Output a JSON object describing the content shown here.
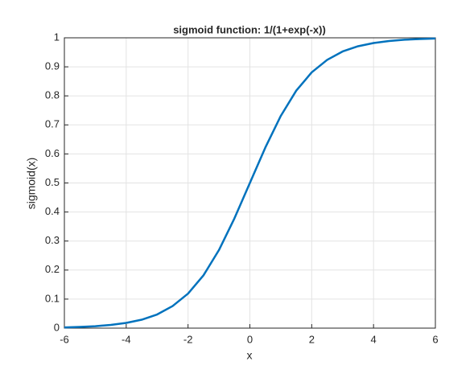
{
  "chart_data": {
    "type": "line",
    "title": "sigmoid function: 1/(1+exp(-x))",
    "x_label": "x",
    "y_label": "sigmoid(x)",
    "x": [
      -6,
      -5.5,
      -5,
      -4.5,
      -4,
      -3.5,
      -3,
      -2.5,
      -2,
      -1.5,
      -1,
      -0.5,
      0,
      0.5,
      1,
      1.5,
      2,
      2.5,
      3,
      3.5,
      4,
      4.5,
      5,
      5.5,
      6
    ],
    "series": [
      {
        "color": "#0072bd",
        "values": [
          0.0025,
          0.0041,
          0.0067,
          0.011,
          0.018,
          0.029,
          0.047,
          0.076,
          0.119,
          0.182,
          0.269,
          0.378,
          0.5,
          0.622,
          0.731,
          0.818,
          0.881,
          0.924,
          0.953,
          0.971,
          0.982,
          0.989,
          0.9933,
          0.9959,
          0.9975
        ]
      }
    ],
    "xlim": [
      -6,
      6
    ],
    "xticks": [
      -6,
      -4,
      -2,
      0,
      2,
      4,
      6
    ],
    "ylim": [
      0,
      1
    ],
    "yticks": [
      0,
      0.1,
      0.2,
      0.3,
      0.4,
      0.5,
      0.6,
      0.7,
      0.8,
      0.9,
      1
    ],
    "grid": true
  }
}
